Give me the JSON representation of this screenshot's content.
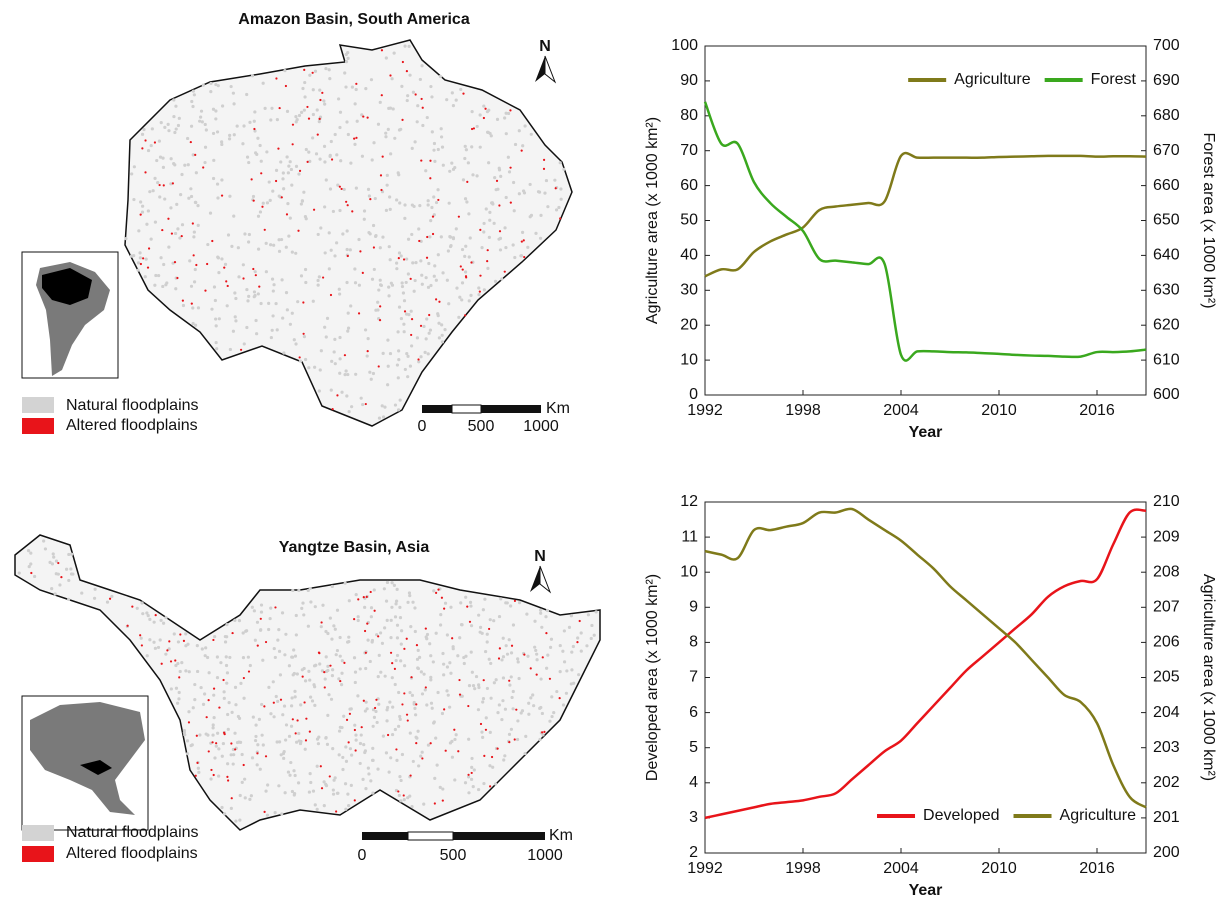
{
  "maps": [
    {
      "title": "Amazon Basin, South America",
      "north": "N",
      "legend": [
        "Natural floodplains",
        "Altered floodplains"
      ],
      "scale": [
        0,
        500,
        1000
      ],
      "scale_unit": "Km"
    },
    {
      "title": "Yangtze Basin, Asia",
      "north": "N",
      "legend": [
        "Natural floodplains",
        "Altered floodplains"
      ],
      "scale": [
        0,
        500,
        1000
      ],
      "scale_unit": "Km"
    }
  ],
  "chart_data": [
    {
      "type": "line",
      "xlabel": "Year",
      "ylabel": "Agriculture area (x 1000 km²)",
      "y2label": "Forest area (x 1000 km²)",
      "x": [
        1992,
        1993,
        1994,
        1995,
        1996,
        1997,
        1998,
        1999,
        2000,
        2001,
        2002,
        2003,
        2004,
        2005,
        2006,
        2007,
        2008,
        2009,
        2010,
        2011,
        2012,
        2013,
        2014,
        2015,
        2016,
        2017,
        2018,
        2019
      ],
      "xlim": [
        1992,
        2019
      ],
      "xticks": [
        1992,
        1998,
        2004,
        2010,
        2016
      ],
      "ylim": [
        0,
        100
      ],
      "yticks": [
        0,
        10,
        20,
        30,
        40,
        50,
        60,
        70,
        80,
        90,
        100
      ],
      "y2lim": [
        600,
        700
      ],
      "y2ticks": [
        600,
        610,
        620,
        630,
        640,
        650,
        660,
        670,
        680,
        690,
        700
      ],
      "legend": "upper right",
      "series": [
        {
          "name": "Agriculture",
          "color": "#7f7a1a",
          "values": [
            34,
            36,
            36,
            41,
            44,
            46,
            48,
            53,
            54,
            54.5,
            55,
            55.5,
            68.5,
            68,
            68,
            68,
            68,
            68,
            68.2,
            68.3,
            68.4,
            68.5,
            68.5,
            68.5,
            68.3,
            68.4,
            68.4,
            68.3
          ]
        },
        {
          "name": "Forest",
          "color": "#3aa81e",
          "axis": "y2",
          "values": [
            684,
            672,
            672,
            661,
            655,
            651,
            647,
            639,
            638.5,
            638,
            637.5,
            637.5,
            611.5,
            612.5,
            612.5,
            612.3,
            612.2,
            612,
            611.8,
            611.5,
            611.3,
            611.2,
            611,
            611,
            612.3,
            612.3,
            612.5,
            613
          ]
        }
      ]
    },
    {
      "type": "line",
      "xlabel": "Year",
      "ylabel": "Developed area (x 1000 km²)",
      "y2label": "Agriculture area (x 1000 km²)",
      "x": [
        1992,
        1993,
        1994,
        1995,
        1996,
        1997,
        1998,
        1999,
        2000,
        2001,
        2002,
        2003,
        2004,
        2005,
        2006,
        2007,
        2008,
        2009,
        2010,
        2011,
        2012,
        2013,
        2014,
        2015,
        2016,
        2017,
        2018,
        2019
      ],
      "xlim": [
        1992,
        2019
      ],
      "xticks": [
        1992,
        1998,
        2004,
        2010,
        2016
      ],
      "ylim": [
        2,
        12
      ],
      "yticks": [
        2,
        3,
        4,
        5,
        6,
        7,
        8,
        9,
        10,
        11,
        12
      ],
      "y2lim": [
        200,
        210
      ],
      "y2ticks": [
        200,
        201,
        202,
        203,
        204,
        205,
        206,
        207,
        208,
        209,
        210
      ],
      "legend": "lower right",
      "series": [
        {
          "name": "Developed",
          "color": "#e8141a",
          "values": [
            3,
            3.1,
            3.2,
            3.3,
            3.4,
            3.45,
            3.5,
            3.6,
            3.7,
            4.1,
            4.5,
            4.9,
            5.2,
            5.7,
            6.2,
            6.7,
            7.2,
            7.6,
            8,
            8.4,
            8.8,
            9.3,
            9.6,
            9.75,
            9.8,
            10.8,
            11.7,
            11.75
          ]
        },
        {
          "name": "Agriculture",
          "color": "#7f7a1a",
          "axis": "y2",
          "values": [
            208.6,
            208.5,
            208.4,
            209.2,
            209.2,
            209.3,
            209.4,
            209.7,
            209.7,
            209.8,
            209.5,
            209.2,
            208.9,
            208.5,
            208.1,
            207.6,
            207.2,
            206.8,
            206.4,
            206,
            205.5,
            205,
            204.5,
            204.3,
            203.7,
            202.5,
            201.6,
            201.3
          ]
        }
      ]
    }
  ]
}
